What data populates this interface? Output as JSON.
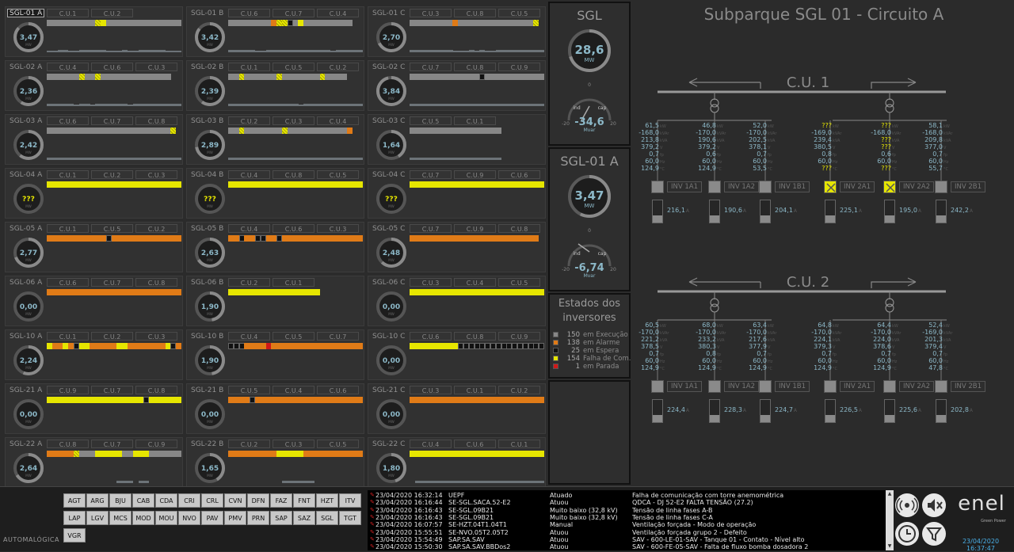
{
  "title": "Subparque SGL 01 - Circuito A",
  "groups": [
    {
      "label": "SGL-01 A",
      "selected": true,
      "value": "3,47",
      "cus": [
        "C.U.1",
        "C.U.2"
      ],
      "squares": "gggggggggyhyggggggggggggggggg",
      "bars": "ssmmssmmmmmsssmssmmmmmsss"
    },
    {
      "label": "SGL-01 B",
      "value": "3,42",
      "cus": [
        "C.U.6",
        "C.U.7",
        "C.U.4"
      ],
      "squares": "ggggggggoyhyhkgyggggggggg",
      "bars": "mmmmmssmmmmmmmmmmmmsmmmmm"
    },
    {
      "label": "SGL-01 C",
      "value": "2,70",
      "cus": [
        "C.U.3",
        "C.U.8",
        "C.U.5"
      ],
      "squares": "ggggggggoggggggggggggggyh",
      "bars": "mmmmmmmmsssmsmssmmmmmmmmm"
    },
    {
      "label": "SGL-02 A",
      "value": "2,36",
      "cus": [
        "C.U.4",
        "C.U.6",
        "C.U.3"
      ],
      "squares": "ggggggyhggyhggggggggggggg",
      "bars": "mmmmmsmmsmmmmmmsmmmmmmmmm"
    },
    {
      "label": "SGL-02 B",
      "value": "2,39",
      "cus": [
        "C.U.1",
        "C.U.5",
        "C.U.2"
      ],
      "squares": "ggyhggggggyhgggggggyhgggg",
      "bars": "mmmmmmmmmmmmmsmmmmmmmmmmm"
    },
    {
      "label": "SGL-02 C",
      "value": "3,84",
      "cus": [
        "C.U.7",
        "C.U.8",
        "C.U.9"
      ],
      "squares": "gggggggggggggkggggggggggg",
      "bars": "mmmmmmmmmmmmmmmmmmmmmmmmm"
    },
    {
      "label": "SGL-03 A",
      "value": "2,42",
      "cus": [
        "C.U.6",
        "C.U.7",
        "C.U.8"
      ],
      "squares": "gggggggggggggggggggggggyh",
      "bars": "mmmmmmmmmmmmmmmmmmmmmmmmm"
    },
    {
      "label": "SGL-03 B",
      "value": "2,89",
      "cus": [
        "C.U.2",
        "C.U.3",
        "C.U.4"
      ],
      "squares": "ggyhgggggggyhgggggggggggo",
      "bars": "mmmmmmmmmmmmmmmmmmmmmmmmm"
    },
    {
      "label": "SGL-03 C",
      "value": "1,64",
      "cus": [
        "C.U.5",
        "C.U.1"
      ],
      "squares": "ggggggggggggggggg",
      "bars": "mmmmmmmmmmmmmmmmm"
    },
    {
      "label": "SGL-04 A",
      "value": "???",
      "cus": [
        "C.U.1",
        "C.U.2",
        "C.U.3"
      ],
      "squares": "yyyyyyyyyyyyyyyyyyyyyyyyy",
      "bars": ""
    },
    {
      "label": "SGL-04 B",
      "value": "???",
      "cus": [
        "C.U.4",
        "C.U.8",
        "C.U.5"
      ],
      "squares": "yyyyyyyyyyyyyyyyyyyyyyyyy",
      "bars": ""
    },
    {
      "label": "SGL-04 C",
      "value": "???",
      "cus": [
        "C.U.7",
        "C.U.9",
        "C.U.6"
      ],
      "squares": "yyyyyyyyyyyyyyyyyyyyyyyyy",
      "bars": ""
    },
    {
      "label": "SGL-05 A",
      "value": "2,77",
      "cus": [
        "C.U.1",
        "C.U.5",
        "C.U.2"
      ],
      "squares": "oooooooooookoooooooooooooo",
      "bars": ""
    },
    {
      "label": "SGL-05 B",
      "value": "2,63",
      "cus": [
        "C.U.4",
        "C.U.6",
        "C.U.3"
      ],
      "squares": "ookookkookooooooooooooooo",
      "bars": ""
    },
    {
      "label": "SGL-05 C",
      "value": "2,48",
      "cus": [
        "C.U.7",
        "C.U.9",
        "C.U.8"
      ],
      "squares": "oooooooooooooooooooooooo",
      "bars": ""
    },
    {
      "label": "SGL-06 A",
      "value": "0,00",
      "cus": [
        "C.U.6",
        "C.U.7",
        "C.U.8"
      ],
      "squares": "ooooooooooooooooooooooooo",
      "bars": ""
    },
    {
      "label": "SGL-06 B",
      "value": "1,90",
      "cus": [
        "C.U.2",
        "C.U.1"
      ],
      "squares": "yyyyyyyyyyyyyyyyy",
      "bars": ""
    },
    {
      "label": "SGL-06 C",
      "value": "0,00",
      "cus": [
        "C.U.3",
        "C.U.4",
        "C.U.5"
      ],
      "squares": "yyyyyyyyyyyyyyyyyyyyyyyyy",
      "bars": ""
    },
    {
      "label": "SGL-10 A",
      "value": "2,24",
      "cus": [
        "C.U.1",
        "C.U.2",
        "C.U.3"
      ],
      "squares": "yooyokyyoooooyyoooooooyko",
      "bars": ""
    },
    {
      "label": "SGL-10 B",
      "value": "1,90",
      "cus": [
        "C.U.4",
        "C.U.5",
        "C.U.7"
      ],
      "squares": "kkkoooorooooooooooooooooo",
      "bars": ""
    },
    {
      "label": "SGL-10 C",
      "value": "0,00",
      "cus": [
        "C.U.6",
        "C.U.8",
        "C.U.9"
      ],
      "squares": "yyyyyyyyykkkkkkkkkkkkkkkk",
      "bars": ""
    },
    {
      "label": "SGL-21 A",
      "value": "0,00",
      "cus": [
        "C.U.9",
        "C.U.7",
        "C.U.8"
      ],
      "squares": "yyyyyyyyyyyyyyyyyykyyyyyy",
      "bars": ""
    },
    {
      "label": "SGL-21 B",
      "value": "0,00",
      "cus": [
        "C.U.5",
        "C.U.4",
        "C.U.6"
      ],
      "squares": "ooookoooooooooooooooooooo",
      "bars": ""
    },
    {
      "label": "SGL-21 C",
      "value": "0,00",
      "cus": [
        "C.U.3",
        "C.U.1",
        "C.U.2"
      ],
      "squares": "ooooooooooooooooooooooooo",
      "bars": ""
    },
    {
      "label": "SGL-22 A",
      "value": "2,64",
      "cus": [
        "C.U.8",
        "C.U.7",
        "C.U.9"
      ],
      "squares": "oooooyhgggyyyyyggyyygggggg",
      "bars": "0000000000000mmm0mm000000"
    },
    {
      "label": "SGL-22 B",
      "value": "1,65",
      "cus": [
        "C.U.2",
        "C.U.3",
        "C.U.5"
      ],
      "squares": "oooooooooyyyyyooooooooooo",
      "bars": "0000000000mmmmmm000000000"
    },
    {
      "label": "SGL-22 C",
      "value": "1,80",
      "cus": [
        "C.U.4",
        "C.U.6",
        "C.U.1"
      ],
      "squares": "yyyyyyyyyyyyyyyyyyyyyyyyy",
      "bars": "0mmmmmmmmmmmmmmmmmmmmmmmm"
    }
  ],
  "mw_unit": "MW",
  "sgl": {
    "title": "SGL",
    "value": "28,6",
    "unit": "MW",
    "mvar": "-34,6",
    "mvar_unit": "Mvar",
    "zero": "0",
    "min": "-20",
    "max": "20",
    "ind": "ind",
    "cap": "cap"
  },
  "sgl01a": {
    "title": "SGL-01 A",
    "value": "3,47",
    "unit": "MW",
    "mvar": "-6,74",
    "mvar_unit": "Mvar",
    "zero": "0",
    "min": "-20",
    "max": "20",
    "ind": "ind",
    "cap": "cap"
  },
  "states": {
    "title_line1": "Estados dos",
    "title_line2": "inversores",
    "items": [
      {
        "count": "150",
        "label": "em Execução",
        "color": "#878787"
      },
      {
        "count": "138",
        "label": "em Alarme",
        "color": "#e07b17"
      },
      {
        "count": "25",
        "label": "em Espera",
        "color": "#111111"
      },
      {
        "count": "154",
        "label": "Falha de Com.",
        "color": "#e6e600"
      },
      {
        "count": "1",
        "label": "em Parada",
        "color": "#d01818"
      }
    ]
  },
  "cu_blocks": [
    {
      "title": "C.U. 1",
      "inverters": [
        {
          "name": "INV 1A1",
          "vals": [
            "61,5",
            "-168,0",
            "213,8",
            "379,2",
            "0,7",
            "60,0",
            "124,9"
          ],
          "current": "216,1",
          "state": "g"
        },
        {
          "name": "INV 1A2",
          "vals": [
            "46,8",
            "-170,0",
            "190,6",
            "379,2",
            "0,6",
            "60,0",
            "124,9"
          ],
          "current": "190,6",
          "state": "g"
        },
        {
          "name": "INV 1B1",
          "vals": [
            "52,0",
            "-170,0",
            "202,5",
            "378,1",
            "0,7",
            "60,0",
            "53,5"
          ],
          "current": "204,1",
          "state": "g"
        },
        {
          "name": "INV 2A1",
          "vals": [
            "???",
            "-169,0",
            "239,4",
            "380,5",
            "0,8",
            "60,0",
            "???"
          ],
          "current": "225,1",
          "state": "y"
        },
        {
          "name": "INV 2A2",
          "vals": [
            "???",
            "-168,0",
            "???",
            "???",
            "0,6",
            "60,0",
            "???"
          ],
          "current": "195,0",
          "state": "y"
        },
        {
          "name": "INV 2B1",
          "vals": [
            "58,1",
            "-168,0",
            "209,8",
            "377,0",
            "0,7",
            "60,0",
            "55,7"
          ],
          "current": "242,2",
          "state": "g"
        }
      ]
    },
    {
      "title": "C.U. 2",
      "inverters": [
        {
          "name": "INV 1A1",
          "vals": [
            "60,5",
            "-170,0",
            "221,2",
            "378,5",
            "0,7",
            "60,0",
            "124,9"
          ],
          "current": "224,4",
          "state": "g"
        },
        {
          "name": "INV 1A2",
          "vals": [
            "68,0",
            "-170,0",
            "233,2",
            "380,3",
            "0,8",
            "60,0",
            "124,9"
          ],
          "current": "228,3",
          "state": "g"
        },
        {
          "name": "INV 1B1",
          "vals": [
            "63,4",
            "-170,0",
            "217,6",
            "377,9",
            "0,7",
            "60,0",
            "124,9"
          ],
          "current": "224,7",
          "state": "g"
        },
        {
          "name": "INV 2A1",
          "vals": [
            "64,8",
            "-170,0",
            "224,1",
            "379,3",
            "0,7",
            "60,0",
            "124,9"
          ],
          "current": "226,5",
          "state": "g"
        },
        {
          "name": "INV 2A2",
          "vals": [
            "64,4",
            "-170,0",
            "224,0",
            "378,6",
            "0,7",
            "60,0",
            "124,9"
          ],
          "current": "225,6",
          "state": "g"
        },
        {
          "name": "INV 2B1",
          "vals": [
            "52,4",
            "-169,0",
            "201,3",
            "379,4",
            "0,7",
            "60,0",
            "47,8"
          ],
          "current": "202,8",
          "state": "g"
        }
      ]
    }
  ],
  "inv_units": [
    "kW",
    "kVAr",
    "kVA",
    "V",
    "fp",
    "Hz",
    "°C"
  ],
  "current_unit": "A",
  "brand_left": "AUTOMALÓGICA",
  "subparks": [
    "AGT",
    "ARG",
    "BJU",
    "CAB",
    "CDA",
    "CRI",
    "CRL",
    "CVN",
    "DFN",
    "FAZ",
    "FNT",
    "HZT",
    "ITV",
    "LAP",
    "LGV",
    "MCS",
    "MOD",
    "MOU",
    "NVO",
    "PAV",
    "PMV",
    "PRN",
    "SAP",
    "SAZ",
    "SGL",
    "TGT",
    "VGR"
  ],
  "alarms": [
    {
      "time": "23/04/2020 16:32:14",
      "tag": "UEPF",
      "state": "Atuado",
      "desc": "Falha de comunicação com torre anemométrica"
    },
    {
      "time": "23/04/2020 16:16:44",
      "tag": "SE-SGL.SACA.52-E2",
      "state": "Atuou",
      "desc": "QDCA - DJ 52-E2 FALTA TENSÃO (27.2)"
    },
    {
      "time": "23/04/2020 16:16:43",
      "tag": "SE-SGL.09B21",
      "state": "Muito baixo (32,8 kV)",
      "desc": "Tensão de linha fases A-B"
    },
    {
      "time": "23/04/2020 16:16:43",
      "tag": "SE-SGL.09B21",
      "state": "Muito baixo (32,8 kV)",
      "desc": "Tensão de linha fases C-A"
    },
    {
      "time": "23/04/2020 16:07:57",
      "tag": "SE-HZT.04T1.04T1",
      "state": "Manual",
      "desc": "Ventilação forçada - Modo de operação"
    },
    {
      "time": "23/04/2020 15:55:51",
      "tag": "SE-NVO.05T2.05T2",
      "state": "Atuou",
      "desc": "Ventilação forçada grupo 2 - Defeito"
    },
    {
      "time": "23/04/2020 15:54:49",
      "tag": "SAP.SA.SAV",
      "state": "Atuou",
      "desc": "SAV - 600-LE-01-SAV - Tanque 01 - Contato - Nível alto"
    },
    {
      "time": "23/04/2020 15:50:30",
      "tag": "SAP.SA.SAV.BBDos2",
      "state": "Atuou",
      "desc": "SAV - 600-FE-05-SAV - Falta de fluxo bomba dosadora 2"
    }
  ],
  "brand_right": "enel",
  "brand_right_sub": "Green Power",
  "datetime": "23/04/2020 16:37:47",
  "colors": {
    "gray": "#878787",
    "yellow": "#e6e600",
    "orange": "#e07b17",
    "black": "#111111",
    "red": "#d01818",
    "gauge_text": "#8cb8c8"
  }
}
